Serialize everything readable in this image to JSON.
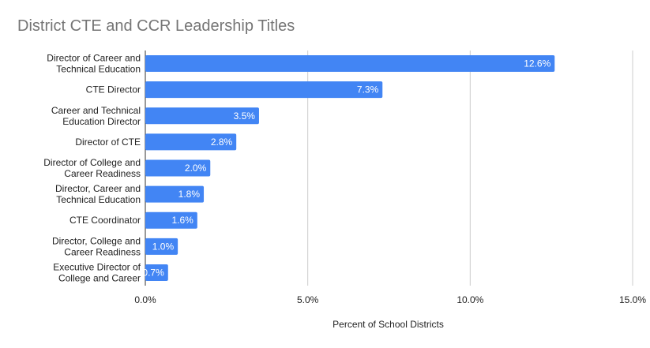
{
  "chart_data": {
    "type": "bar",
    "orientation": "horizontal",
    "title": "District CTE and CCR Leadership Titles",
    "xlabel": "Percent of School Districts",
    "ylabel": "",
    "categories": [
      [
        "Director of Career and",
        "Technical Education"
      ],
      [
        "CTE Director"
      ],
      [
        "Career and Technical",
        "Education Director"
      ],
      [
        "Director of CTE"
      ],
      [
        "Director of College and",
        "Career Readiness"
      ],
      [
        "Director, Career and",
        "Technical Education"
      ],
      [
        "CTE Coordinator"
      ],
      [
        "Director, College and",
        "Career Readiness"
      ],
      [
        "Executive Director of",
        "College and Career"
      ]
    ],
    "values": [
      12.6,
      7.3,
      3.5,
      2.8,
      2.0,
      1.8,
      1.6,
      1.0,
      0.7
    ],
    "data_labels": [
      "12.6%",
      "7.3%",
      "3.5%",
      "2.8%",
      "2.0%",
      "1.8%",
      "1.6%",
      "1.0%",
      "0.7%"
    ],
    "xlim": [
      0,
      15
    ],
    "x_ticks": [
      0,
      5,
      10,
      15
    ],
    "x_tick_labels": [
      "0.0%",
      "5.0%",
      "10.0%",
      "15.0%"
    ],
    "grid": true,
    "legend": "none",
    "bar_color": "#4285f4"
  }
}
